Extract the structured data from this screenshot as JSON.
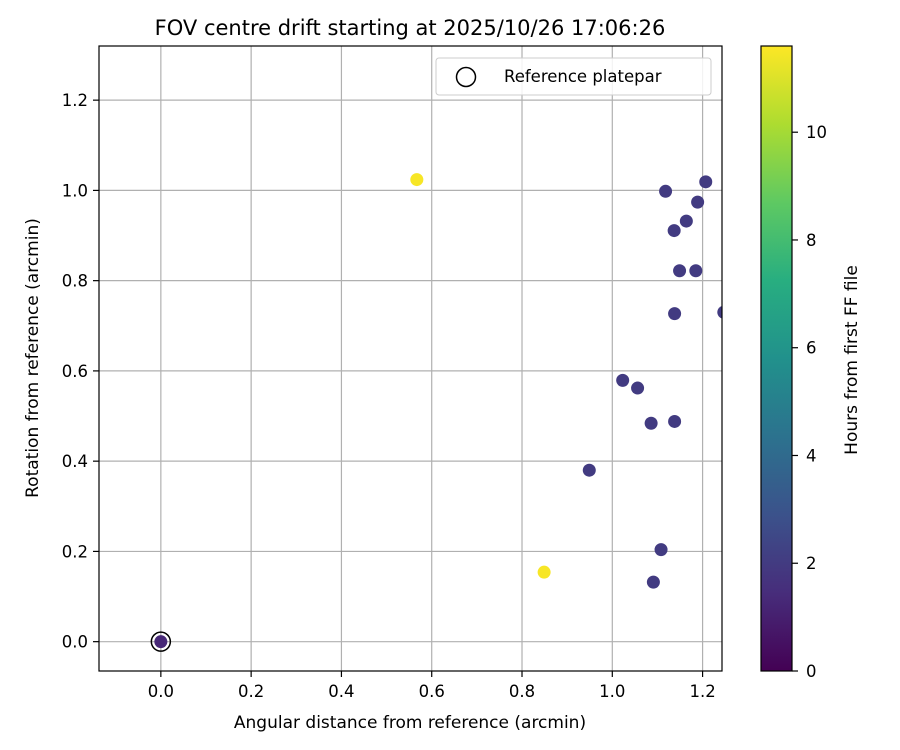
{
  "chart_data": {
    "type": "scatter",
    "title": "FOV centre drift starting at 2025/10/26 17:06:26",
    "xlabel": "Angular distance from reference (arcmin)",
    "ylabel": "Rotation from reference (arcmin)",
    "xlim": [
      -0.137,
      1.243
    ],
    "ylim": [
      -0.065,
      1.32
    ],
    "xticks": [
      0.0,
      0.2,
      0.4,
      0.6,
      0.8,
      1.0,
      1.2
    ],
    "xtick_labels": [
      "0.0",
      "0.2",
      "0.4",
      "0.6",
      "0.8",
      "1.0",
      "1.2"
    ],
    "yticks": [
      0.0,
      0.2,
      0.4,
      0.6,
      0.8,
      1.0,
      1.2
    ],
    "ytick_labels": [
      "0.0",
      "0.2",
      "0.4",
      "0.6",
      "0.8",
      "1.0",
      "1.2"
    ],
    "grid": true,
    "legend": {
      "position": "top-right",
      "entries": [
        "Reference platepar"
      ]
    },
    "reference": {
      "x": 0.0,
      "y": 0.0,
      "label": "Reference platepar"
    },
    "colorbar": {
      "label": "Hours from first FF file",
      "range": [
        0,
        11.6
      ],
      "ticks": [
        0,
        2,
        4,
        6,
        8,
        10
      ],
      "tick_labels": [
        "0",
        "2",
        "4",
        "6",
        "8",
        "10"
      ],
      "colormap": "viridis"
    },
    "points": [
      {
        "x": 0.0,
        "y": 0.0,
        "hours": 1.3
      },
      {
        "x": 0.567,
        "y": 1.024,
        "hours": 11.5
      },
      {
        "x": 0.849,
        "y": 0.154,
        "hours": 11.5
      },
      {
        "x": 0.949,
        "y": 0.38,
        "hours": 2.0
      },
      {
        "x": 1.023,
        "y": 0.579,
        "hours": 2.0
      },
      {
        "x": 1.056,
        "y": 0.562,
        "hours": 2.0
      },
      {
        "x": 1.086,
        "y": 0.484,
        "hours": 2.0
      },
      {
        "x": 1.091,
        "y": 0.132,
        "hours": 2.0
      },
      {
        "x": 1.108,
        "y": 0.204,
        "hours": 2.0
      },
      {
        "x": 1.118,
        "y": 0.998,
        "hours": 2.0
      },
      {
        "x": 1.137,
        "y": 0.911,
        "hours": 2.0
      },
      {
        "x": 1.138,
        "y": 0.727,
        "hours": 2.0
      },
      {
        "x": 1.138,
        "y": 0.488,
        "hours": 2.0
      },
      {
        "x": 1.149,
        "y": 0.822,
        "hours": 2.0
      },
      {
        "x": 1.164,
        "y": 0.932,
        "hours": 2.0
      },
      {
        "x": 1.185,
        "y": 0.822,
        "hours": 2.0
      },
      {
        "x": 1.189,
        "y": 0.974,
        "hours": 2.0
      },
      {
        "x": 1.207,
        "y": 1.019,
        "hours": 2.0
      },
      {
        "x": 1.247,
        "y": 0.73,
        "hours": 2.0
      }
    ]
  }
}
